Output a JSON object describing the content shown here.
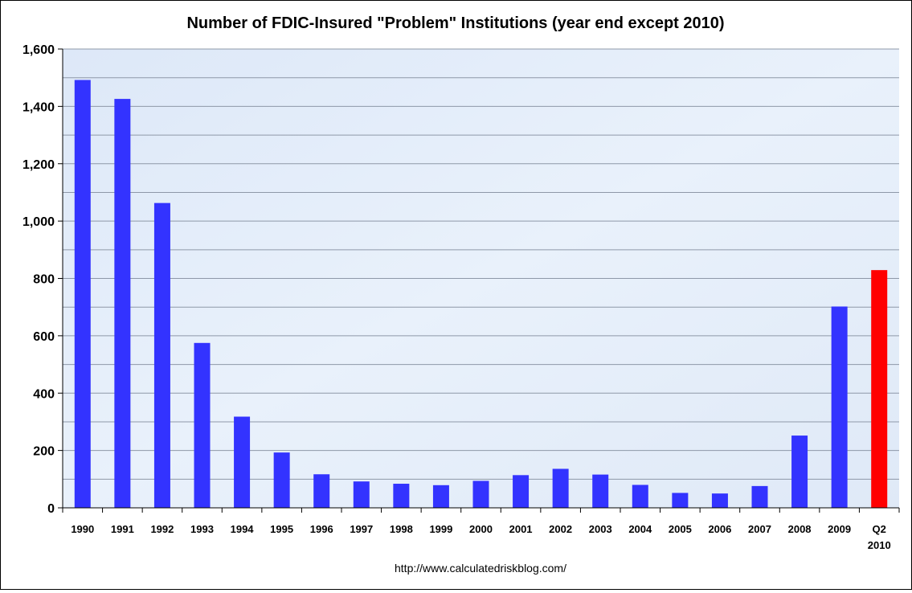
{
  "chart_data": {
    "type": "bar",
    "title": "Number of FDIC-Insured \"Problem\" Institutions (year end except 2010)",
    "categories": [
      "1990",
      "1991",
      "1992",
      "1993",
      "1994",
      "1995",
      "1996",
      "1997",
      "1998",
      "1999",
      "2000",
      "2001",
      "2002",
      "2003",
      "2004",
      "2005",
      "2006",
      "2007",
      "2008",
      "2009",
      "Q2 2010"
    ],
    "values": [
      1492,
      1426,
      1063,
      575,
      318,
      193,
      117,
      92,
      84,
      79,
      94,
      114,
      136,
      116,
      80,
      52,
      50,
      76,
      252,
      702,
      829
    ],
    "bar_colors": [
      "#3333ff",
      "#3333ff",
      "#3333ff",
      "#3333ff",
      "#3333ff",
      "#3333ff",
      "#3333ff",
      "#3333ff",
      "#3333ff",
      "#3333ff",
      "#3333ff",
      "#3333ff",
      "#3333ff",
      "#3333ff",
      "#3333ff",
      "#3333ff",
      "#3333ff",
      "#3333ff",
      "#3333ff",
      "#3333ff",
      "#ff0000"
    ],
    "ylim": [
      0,
      1600
    ],
    "yticks": [
      0,
      200,
      400,
      600,
      800,
      1000,
      1200,
      1400,
      1600
    ],
    "ytick_labels": [
      "0",
      "200",
      "400",
      "600",
      "800",
      "1,000",
      "1,200",
      "1,400",
      "1,600"
    ],
    "minor_grid_step": 100,
    "grid": true,
    "xlabel": "",
    "ylabel": "",
    "source": "http://www.calculatedriskblog.com/"
  }
}
